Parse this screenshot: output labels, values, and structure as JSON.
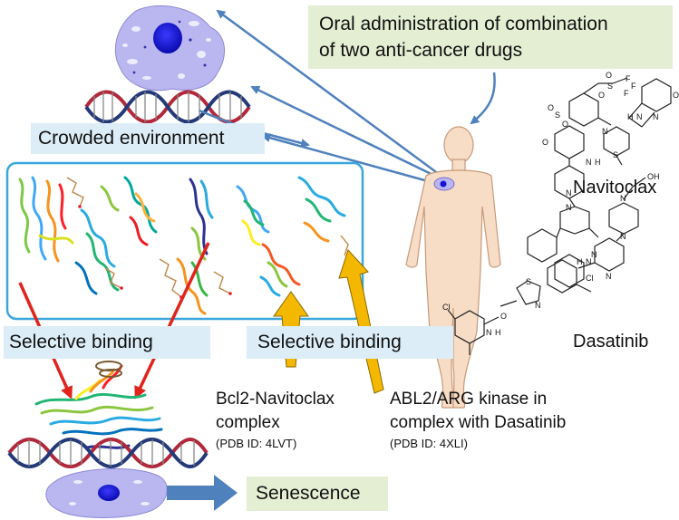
{
  "oral_box": {
    "line1": "Oral administration of combination",
    "line2": "of two anti-cancer drugs"
  },
  "crowded_label": "Crowded environment",
  "selective_left": "Selective binding",
  "selective_right": "Selective binding",
  "bcl2": {
    "line1": "Bcl2-Navitoclax",
    "line2": "complex",
    "pdb": "(PDB ID: 4LVT)"
  },
  "abl2": {
    "line1": "ABL2/ARG kinase in",
    "line2": "complex with Dasatinib",
    "pdb": "(PDB ID: 4XLI)"
  },
  "drug1": "Navitoclax",
  "drug2": "Dasatinib",
  "senescence": "Senescence",
  "chem": {
    "nav_atoms": [
      "O",
      "S",
      "O",
      "F",
      "F",
      "F",
      "O",
      "N",
      "O",
      "O",
      "S",
      "H",
      "N",
      "N",
      "O",
      "N",
      "H",
      "S",
      "N",
      "N",
      "Cl"
    ],
    "das_atoms": [
      "OH",
      "N",
      "N",
      "N",
      "N",
      "H",
      "N",
      "S",
      "Cl",
      "O",
      "N",
      "H",
      "N"
    ]
  },
  "colors": {
    "green_box": "#e4eed3",
    "blue_box": "#dcedf7",
    "arrow_blue": "#4f81bd",
    "arrow_red": "#e0241b",
    "arrow_orange": "#f5b800",
    "skin": "#f7dcc6",
    "cell": "#b9b6f0",
    "nucleus": "#1414d9",
    "dna_red": "#b1283b",
    "dna_navy": "#243a78",
    "box_border": "#3aa7dc"
  }
}
